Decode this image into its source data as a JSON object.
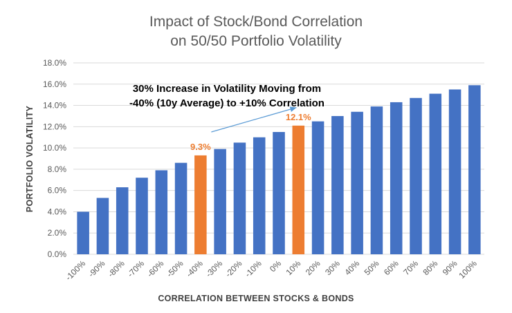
{
  "chart_data": {
    "type": "bar",
    "title": "Impact of Stock/Bond Correlation",
    "subtitle": "on 50/50 Portfolio Volatility",
    "xlabel": "CORRELATION BETWEEN STOCKS & BONDS",
    "ylabel": "PORTFOLIO VOLATILITY",
    "ylim": [
      0,
      18
    ],
    "ytick_step": 2,
    "ytick_labels": [
      "0.0%",
      "2.0%",
      "4.0%",
      "6.0%",
      "8.0%",
      "10.0%",
      "12.0%",
      "14.0%",
      "16.0%",
      "18.0%"
    ],
    "categories": [
      "-100%",
      "-90%",
      "-80%",
      "-70%",
      "-60%",
      "-50%",
      "-40%",
      "-30%",
      "-20%",
      "-10%",
      "0%",
      "10%",
      "20%",
      "30%",
      "40%",
      "50%",
      "60%",
      "70%",
      "80%",
      "90%",
      "100%"
    ],
    "values": [
      4.0,
      5.3,
      6.3,
      7.2,
      7.9,
      8.6,
      9.3,
      9.9,
      10.5,
      11.0,
      11.5,
      12.1,
      12.5,
      13.0,
      13.4,
      13.9,
      14.3,
      14.7,
      15.1,
      15.5,
      15.9
    ],
    "colors": {
      "default": "#4472C4",
      "highlight": "#ED7D31",
      "grid": "#D9D9D9",
      "arrow": "#5B9BD5"
    },
    "highlights": [
      {
        "category": "-40%",
        "label": "9.3%"
      },
      {
        "category": "10%",
        "label": "12.1%"
      }
    ],
    "annotation": {
      "lines": [
        "30% Increase in Volatility Moving from",
        "-40% (10y Average) to +10% Correlation"
      ],
      "arrow_from": {
        "category": "-40%",
        "value": 11.5
      },
      "arrow_to": {
        "category": "10%",
        "value": 13.8
      }
    },
    "grid": true,
    "legend": "none"
  }
}
